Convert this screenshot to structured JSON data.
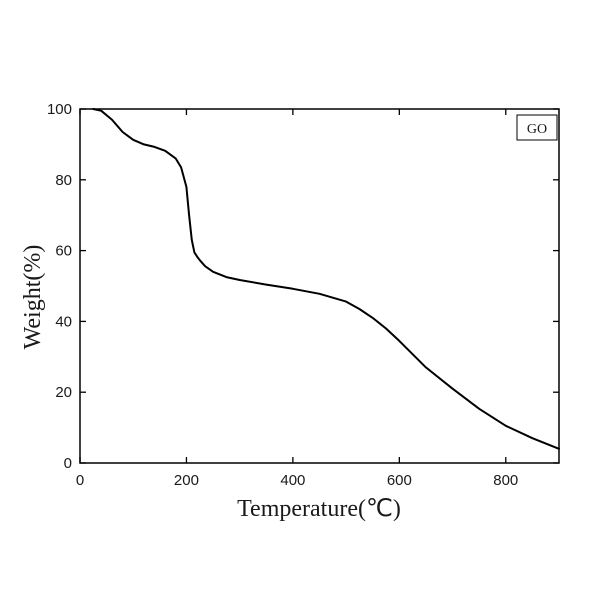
{
  "chart_data": {
    "type": "line",
    "title": "",
    "xlabel": "Temperature(℃)",
    "ylabel": "Weight(%)",
    "xlim": [
      0,
      900
    ],
    "ylim": [
      0,
      100
    ],
    "xticks": [
      0,
      200,
      400,
      600,
      800
    ],
    "yticks": [
      0,
      20,
      40,
      60,
      80,
      100
    ],
    "xtick_labels": [
      "0",
      "200",
      "400",
      "600",
      "800"
    ],
    "ytick_labels": [
      "0",
      "20",
      "40",
      "60",
      "80",
      "100"
    ],
    "grid": false,
    "legend": {
      "position": "top-right",
      "entries": [
        "GO"
      ]
    },
    "series": [
      {
        "name": "GO",
        "color": "#000000",
        "x": [
          25,
          40,
          60,
          80,
          100,
          120,
          140,
          160,
          180,
          190,
          200,
          205,
          210,
          215,
          220,
          225,
          235,
          250,
          275,
          300,
          350,
          400,
          450,
          500,
          525,
          550,
          575,
          600,
          650,
          700,
          750,
          800,
          850,
          900
        ],
        "y": [
          100,
          99.5,
          97,
          93.5,
          91.3,
          90,
          89.3,
          88.2,
          86,
          83.5,
          78,
          70,
          63,
          59.5,
          58.3,
          57.3,
          55.6,
          54,
          52.5,
          51.7,
          50.4,
          49.2,
          47.8,
          45.6,
          43.5,
          41,
          38,
          34.5,
          27,
          21,
          15.3,
          10.5,
          7,
          4
        ]
      }
    ]
  }
}
